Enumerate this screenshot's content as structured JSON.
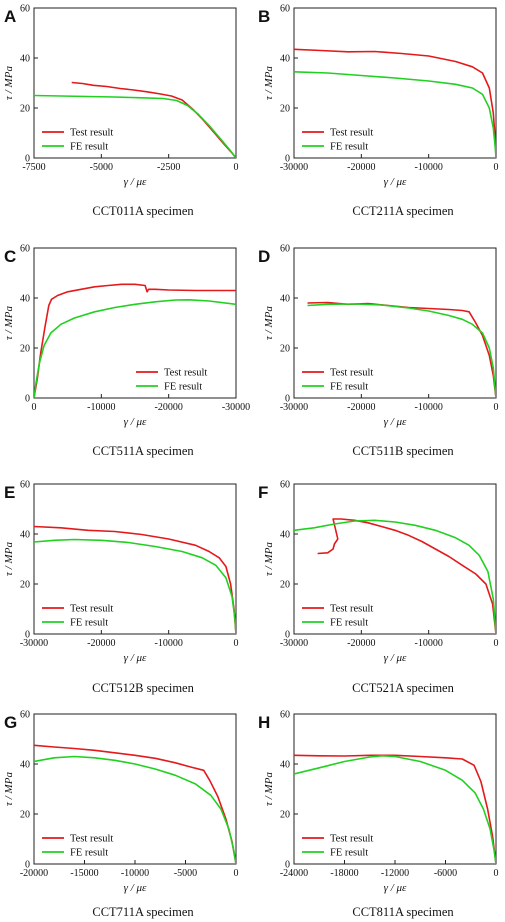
{
  "figure": {
    "colors": {
      "test": "#e31a1c",
      "fe": "#22d022"
    }
  },
  "chart_data": [
    {
      "type": "line",
      "panel": "A",
      "caption": "CCT011A specimen",
      "xlabel": "γ / με",
      "ylabel": "τ / MPa",
      "xlim": [
        -7500,
        0
      ],
      "ylim": [
        0,
        60
      ],
      "xticks": [
        -7500,
        -5000,
        -2500,
        0
      ],
      "yticks": [
        0,
        20,
        40,
        60
      ],
      "legend_position": "bottom-left",
      "series": [
        {
          "name": "Test result",
          "color": "#e31a1c",
          "x": [
            -6100,
            -5700,
            -5300,
            -4800,
            -4300,
            -3800,
            -3300,
            -2800,
            -2400,
            -2000,
            -1600,
            -1200,
            -800,
            -400,
            -150,
            0
          ],
          "y": [
            30.2,
            29.8,
            29.1,
            28.6,
            27.8,
            27.2,
            26.5,
            25.6,
            24.8,
            23.2,
            19.5,
            15.0,
            10.0,
            5.0,
            2.0,
            0
          ]
        },
        {
          "name": "FE result",
          "color": "#22d022",
          "x": [
            -7500,
            -6500,
            -5500,
            -4500,
            -3500,
            -2700,
            -2200,
            -1800,
            -1400,
            -1000,
            -600,
            -250,
            0
          ],
          "y": [
            25.0,
            24.8,
            24.6,
            24.4,
            24.1,
            23.8,
            23.0,
            21.0,
            17.5,
            13.0,
            8.0,
            3.5,
            0
          ]
        }
      ]
    },
    {
      "type": "line",
      "panel": "B",
      "caption": "CCT211A specimen",
      "xlabel": "γ / με",
      "ylabel": "τ / MPa",
      "xlim": [
        -30000,
        0
      ],
      "ylim": [
        0,
        60
      ],
      "xticks": [
        -30000,
        -20000,
        -10000,
        0
      ],
      "yticks": [
        0,
        20,
        40,
        60
      ],
      "legend_position": "bottom-left",
      "series": [
        {
          "name": "Test result",
          "color": "#e31a1c",
          "x": [
            -30000,
            -26000,
            -22000,
            -18000,
            -14000,
            -10000,
            -6000,
            -3500,
            -2000,
            -1000,
            -400,
            -100,
            0
          ],
          "y": [
            43.5,
            43.0,
            42.5,
            42.6,
            41.8,
            40.8,
            38.6,
            36.5,
            34.0,
            28.0,
            18.0,
            7.0,
            0
          ]
        },
        {
          "name": "FE result",
          "color": "#22d022",
          "x": [
            -30000,
            -25000,
            -20000,
            -15000,
            -10000,
            -6000,
            -3500,
            -2000,
            -1000,
            -400,
            -100,
            0
          ],
          "y": [
            34.5,
            34.0,
            33.0,
            32.0,
            30.8,
            29.5,
            28.0,
            25.5,
            20.0,
            12.0,
            4.0,
            0
          ]
        }
      ]
    },
    {
      "type": "line",
      "panel": "C",
      "caption": "CCT511A specimen",
      "xlabel": "γ / με",
      "ylabel": "τ / MPa",
      "xlim": [
        0,
        -30000
      ],
      "ylim": [
        0,
        60
      ],
      "xticks": [
        0,
        -10000,
        -20000,
        -30000
      ],
      "yticks": [
        0,
        20,
        40,
        60
      ],
      "legend_position": "bottom-right",
      "series": [
        {
          "name": "Test result",
          "color": "#e31a1c",
          "x": [
            0,
            -500,
            -1000,
            -1600,
            -2200,
            -2600,
            -3500,
            -5000,
            -7000,
            -9000,
            -11000,
            -13000,
            -15000,
            -16500,
            -16800,
            -17000,
            -18000,
            -20000,
            -24000,
            -30000
          ],
          "y": [
            0,
            8,
            18,
            28,
            37,
            39.5,
            41,
            42.5,
            43.5,
            44.5,
            45,
            45.5,
            45.5,
            45,
            42.5,
            43.5,
            43.5,
            43.2,
            43.0,
            43.0
          ]
        },
        {
          "name": "FE result",
          "color": "#22d022",
          "x": [
            0,
            -300,
            -800,
            -1500,
            -2500,
            -4000,
            -6000,
            -9000,
            -12000,
            -15000,
            -18000,
            -21000,
            -23000,
            -26000,
            -30000
          ],
          "y": [
            0,
            6,
            14,
            21,
            26,
            29.5,
            32,
            34.5,
            36.2,
            37.5,
            38.5,
            39.2,
            39.3,
            38.8,
            37.5
          ]
        }
      ]
    },
    {
      "type": "line",
      "panel": "D",
      "caption": "CCT511B specimen",
      "xlabel": "γ / με",
      "ylabel": "τ / MPa",
      "xlim": [
        -30000,
        0
      ],
      "ylim": [
        0,
        60
      ],
      "xticks": [
        -30000,
        -20000,
        -10000,
        0
      ],
      "yticks": [
        0,
        20,
        40,
        60
      ],
      "legend_position": "bottom-left",
      "series": [
        {
          "name": "Test result",
          "color": "#e31a1c",
          "x": [
            -28000,
            -25000,
            -22000,
            -19000,
            -16000,
            -13000,
            -10000,
            -7000,
            -5000,
            -4000,
            -3000,
            -2000,
            -1000,
            -400,
            0
          ],
          "y": [
            38.0,
            38.2,
            37.5,
            37.8,
            37.0,
            36.2,
            35.8,
            35.4,
            35.0,
            34.5,
            30.0,
            25.0,
            17.0,
            9.0,
            0
          ]
        },
        {
          "name": "FE result",
          "color": "#22d022",
          "x": [
            -28000,
            -25000,
            -21000,
            -17000,
            -13000,
            -10000,
            -7000,
            -5000,
            -3500,
            -2000,
            -1000,
            -400,
            0
          ],
          "y": [
            37.0,
            37.5,
            37.6,
            37.2,
            36.0,
            34.8,
            33.0,
            31.5,
            29.5,
            26.0,
            20.0,
            12.0,
            0
          ]
        }
      ]
    },
    {
      "type": "line",
      "panel": "E",
      "caption": "CCT512B specimen",
      "xlabel": "γ / με",
      "ylabel": "τ / MPa",
      "xlim": [
        -30000,
        0
      ],
      "ylim": [
        0,
        60
      ],
      "xticks": [
        -30000,
        -20000,
        -10000,
        0
      ],
      "yticks": [
        0,
        20,
        40,
        60
      ],
      "legend_position": "bottom-left",
      "series": [
        {
          "name": "Test result",
          "color": "#e31a1c",
          "x": [
            -30000,
            -26000,
            -22000,
            -18000,
            -14000,
            -10000,
            -6000,
            -4000,
            -2500,
            -1500,
            -800,
            -300,
            0
          ],
          "y": [
            43.0,
            42.5,
            41.5,
            41.0,
            39.8,
            38.0,
            35.5,
            33.0,
            30.5,
            27.0,
            20.0,
            10.0,
            0
          ]
        },
        {
          "name": "FE result",
          "color": "#22d022",
          "x": [
            -30000,
            -27000,
            -24000,
            -20000,
            -16000,
            -12000,
            -8000,
            -5000,
            -3000,
            -1500,
            -600,
            -150,
            0
          ],
          "y": [
            36.8,
            37.5,
            37.8,
            37.5,
            36.6,
            35.0,
            33.0,
            30.5,
            27.5,
            22.5,
            15.0,
            6.0,
            0
          ]
        }
      ]
    },
    {
      "type": "line",
      "panel": "F",
      "caption": "CCT521A specimen",
      "xlabel": "γ / με",
      "ylabel": "τ / MPa",
      "xlim": [
        -30000,
        0
      ],
      "ylim": [
        0,
        60
      ],
      "xticks": [
        -30000,
        -20000,
        -10000,
        0
      ],
      "yticks": [
        0,
        20,
        40,
        60
      ],
      "legend_position": "bottom-left",
      "series": [
        {
          "name": "Test result",
          "color": "#e31a1c",
          "x": [
            -26500,
            -25000,
            -24200,
            -24000,
            -23500,
            -24200,
            -23000,
            -21000,
            -19000,
            -17000,
            -15000,
            -13000,
            -11000,
            -9000,
            -7000,
            -5000,
            -3000,
            -1500,
            -500,
            0
          ],
          "y": [
            32.2,
            32.5,
            34.0,
            36.0,
            38.0,
            46.0,
            46.0,
            45.5,
            44.5,
            43.0,
            41.5,
            39.5,
            37.0,
            34.0,
            31.0,
            27.5,
            24.0,
            20.0,
            12.0,
            0
          ]
        },
        {
          "name": "FE result",
          "color": "#22d022",
          "x": [
            -30000,
            -27000,
            -24000,
            -21000,
            -18000,
            -15000,
            -12000,
            -9000,
            -6000,
            -4000,
            -2500,
            -1200,
            -400,
            0
          ],
          "y": [
            41.5,
            42.5,
            44.0,
            45.2,
            45.5,
            44.8,
            43.5,
            41.5,
            38.5,
            35.5,
            31.5,
            25.0,
            14.0,
            0
          ]
        }
      ]
    },
    {
      "type": "line",
      "panel": "G",
      "caption": "CCT711A specimen",
      "xlabel": "γ / με",
      "ylabel": "τ / MPa",
      "xlim": [
        -20000,
        0
      ],
      "ylim": [
        0,
        60
      ],
      "xticks": [
        -20000,
        -15000,
        -10000,
        -5000,
        0
      ],
      "yticks": [
        0,
        20,
        40,
        60
      ],
      "legend_position": "bottom-left",
      "series": [
        {
          "name": "Test result",
          "color": "#e31a1c",
          "x": [
            -20000,
            -18000,
            -16000,
            -14000,
            -12000,
            -10000,
            -8000,
            -6000,
            -4500,
            -3200,
            -2600,
            -1800,
            -1000,
            -400,
            0
          ],
          "y": [
            47.5,
            46.8,
            46.2,
            45.5,
            44.5,
            43.5,
            42.3,
            40.5,
            38.8,
            37.5,
            33.5,
            27.0,
            18.0,
            9.0,
            0
          ]
        },
        {
          "name": "FE result",
          "color": "#22d022",
          "x": [
            -20000,
            -18000,
            -16000,
            -14000,
            -12000,
            -10000,
            -8000,
            -6000,
            -4000,
            -2500,
            -1500,
            -700,
            -200,
            0
          ],
          "y": [
            41.0,
            42.5,
            43.0,
            42.5,
            41.5,
            40.0,
            38.0,
            35.5,
            32.0,
            27.5,
            22.0,
            14.0,
            5.0,
            0
          ]
        }
      ]
    },
    {
      "type": "line",
      "panel": "H",
      "caption": "CCT811A specimen",
      "xlabel": "γ / με",
      "ylabel": "τ / MPa",
      "xlim": [
        -24000,
        0
      ],
      "ylim": [
        0,
        60
      ],
      "xticks": [
        -24000,
        -18000,
        -12000,
        -6000,
        0
      ],
      "yticks": [
        0,
        20,
        40,
        60
      ],
      "legend_position": "bottom-left",
      "series": [
        {
          "name": "Test result",
          "color": "#e31a1c",
          "x": [
            -24000,
            -21000,
            -18000,
            -15000,
            -12000,
            -9000,
            -6000,
            -4000,
            -2600,
            -1800,
            -1000,
            -400,
            0
          ],
          "y": [
            43.5,
            43.3,
            43.2,
            43.5,
            43.5,
            43.0,
            42.5,
            42.0,
            39.5,
            33.0,
            22.0,
            11.0,
            0
          ]
        },
        {
          "name": "FE result",
          "color": "#22d022",
          "x": [
            -24000,
            -21000,
            -18000,
            -15000,
            -13500,
            -12000,
            -9000,
            -6000,
            -4000,
            -2500,
            -1500,
            -700,
            -200,
            0
          ],
          "y": [
            36.0,
            38.5,
            41.0,
            42.8,
            43.3,
            43.0,
            41.0,
            37.5,
            33.5,
            28.5,
            22.0,
            14.0,
            5.0,
            0
          ]
        }
      ]
    }
  ]
}
